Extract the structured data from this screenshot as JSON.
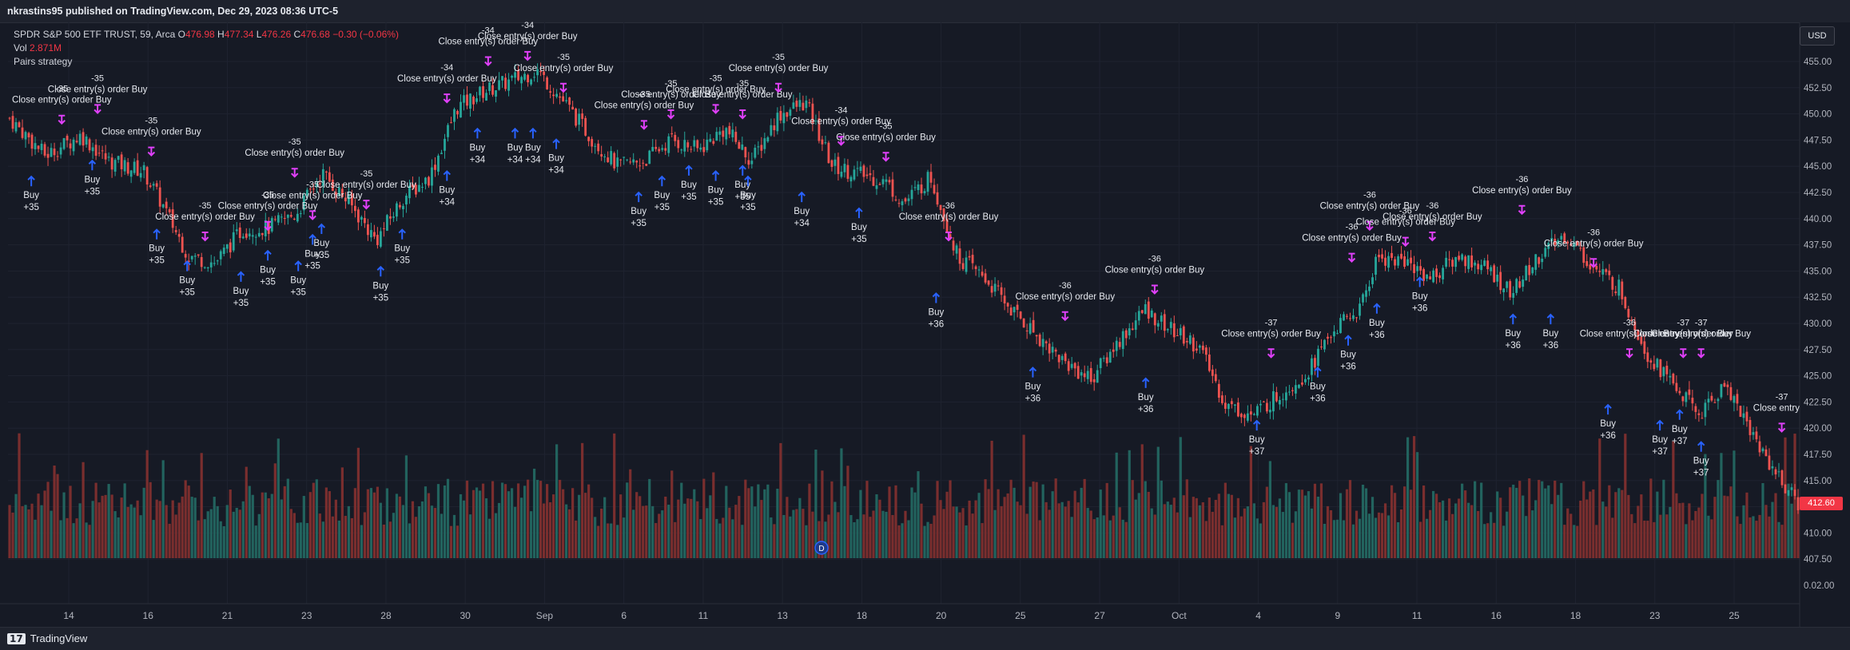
{
  "header": {
    "published": "nkrastins95 published on TradingView.com, Dec 29, 2023 08:36 UTC-5"
  },
  "legend": {
    "symbol": "SPDR S&P 500 ETF TRUST, 59, Arca",
    "o_label": "O",
    "o": "476.98",
    "h_label": "H",
    "h": "477.34",
    "l_label": "L",
    "l": "476.26",
    "c_label": "C",
    "c": "476.68",
    "change": "−0.30 (−0.06%)",
    "vol_label": "Vol",
    "vol": "2.871M",
    "strategy": "Pairs strategy"
  },
  "currency_button": "USD",
  "last_price_tag": "412.60",
  "footer": {
    "logo_mark": "17",
    "brand": "TradingView"
  },
  "marker": "D",
  "colors": {
    "up": "#26a69a",
    "down": "#ef5350",
    "vol_up": "#22635e",
    "vol_down": "#7a2e2e",
    "close_marker": "#e040fb",
    "buy_marker": "#2962ff"
  },
  "chart_data": {
    "type": "candlestick",
    "price_axis": {
      "ylim": [
        407.5,
        457.5
      ],
      "ticks": [
        "455.00",
        "452.50",
        "450.00",
        "447.50",
        "445.00",
        "442.50",
        "440.00",
        "437.50",
        "435.00",
        "432.50",
        "430.00",
        "427.50",
        "425.00",
        "422.50",
        "420.00",
        "417.50",
        "415.00",
        "412.50",
        "410.00",
        "407.50",
        "0.02.00"
      ]
    },
    "x_ticks": [
      "14",
      "16",
      "21",
      "23",
      "28",
      "30",
      "Sep",
      "6",
      "11",
      "13",
      "18",
      "20",
      "25",
      "27",
      "Oct",
      "4",
      "9",
      "11",
      "16",
      "18",
      "23",
      "25"
    ],
    "close_path": [
      [
        0,
        449
      ],
      [
        0.02,
        445.5
      ],
      [
        0.04,
        447.4
      ],
      [
        0.055,
        445
      ],
      [
        0.075,
        444
      ],
      [
        0.085,
        441
      ],
      [
        0.1,
        436
      ],
      [
        0.115,
        435.4
      ],
      [
        0.13,
        438.5
      ],
      [
        0.145,
        438.7
      ],
      [
        0.16,
        440
      ],
      [
        0.175,
        443.8
      ],
      [
        0.19,
        441
      ],
      [
        0.205,
        437.5
      ],
      [
        0.22,
        441.5
      ],
      [
        0.235,
        443.5
      ],
      [
        0.25,
        450
      ],
      [
        0.265,
        451.5
      ],
      [
        0.28,
        452.5
      ],
      [
        0.295,
        453.5
      ],
      [
        0.31,
        450.5
      ],
      [
        0.325,
        447.2
      ],
      [
        0.34,
        444.5
      ],
      [
        0.355,
        445
      ],
      [
        0.37,
        447
      ],
      [
        0.385,
        446
      ],
      [
        0.4,
        448
      ],
      [
        0.415,
        445
      ],
      [
        0.43,
        449.3
      ],
      [
        0.445,
        450.5
      ],
      [
        0.46,
        444.5
      ],
      [
        0.475,
        443.8
      ],
      [
        0.49,
        443
      ],
      [
        0.5,
        441
      ],
      [
        0.515,
        443.5
      ],
      [
        0.53,
        436
      ],
      [
        0.545,
        434
      ],
      [
        0.56,
        431
      ],
      [
        0.575,
        428.5
      ],
      [
        0.59,
        426
      ],
      [
        0.605,
        424.5
      ],
      [
        0.62,
        428
      ],
      [
        0.635,
        431
      ],
      [
        0.65,
        429
      ],
      [
        0.665,
        427.5
      ],
      [
        0.68,
        422
      ],
      [
        0.695,
        421
      ],
      [
        0.71,
        423
      ],
      [
        0.725,
        425
      ],
      [
        0.74,
        429
      ],
      [
        0.755,
        431
      ],
      [
        0.765,
        436
      ],
      [
        0.78,
        435.5
      ],
      [
        0.795,
        434
      ],
      [
        0.81,
        436
      ],
      [
        0.825,
        435
      ],
      [
        0.84,
        432.5
      ],
      [
        0.855,
        436
      ],
      [
        0.87,
        438
      ],
      [
        0.885,
        435
      ],
      [
        0.9,
        433
      ],
      [
        0.915,
        427
      ],
      [
        0.93,
        424
      ],
      [
        0.945,
        421
      ],
      [
        0.96,
        424
      ],
      [
        0.975,
        419
      ],
      [
        0.99,
        415
      ],
      [
        1,
        412.6
      ]
    ],
    "orders_close": [
      {
        "bar": 0.03,
        "price": 448.5,
        "text": "Close entry(s) order Buy",
        "qty": "-35"
      },
      {
        "bar": 0.05,
        "price": 449.5,
        "text": "Close entry(s) order Buy",
        "qty": "-35"
      },
      {
        "bar": 0.08,
        "price": 445.5,
        "text": "Close entry(s) order Buy",
        "qty": "-35"
      },
      {
        "bar": 0.11,
        "price": 437.5,
        "text": "Close entry(s) order Buy",
        "qty": "-35"
      },
      {
        "bar": 0.145,
        "price": 438.5,
        "text": "Close entry(s) order Buy",
        "qty": "-35"
      },
      {
        "bar": 0.16,
        "price": 443.5,
        "text": "Close entry(s) order Buy",
        "qty": "-35"
      },
      {
        "bar": 0.17,
        "price": 439.5,
        "text": "Close entry(s) order Buy",
        "qty": "-35"
      },
      {
        "bar": 0.2,
        "price": 440.5,
        "text": "Close entry(s) order Buy",
        "qty": "-35"
      },
      {
        "bar": 0.245,
        "price": 450.5,
        "text": "Close entry(s) order Buy",
        "qty": "-34"
      },
      {
        "bar": 0.268,
        "price": 454,
        "text": "Close entry(s) order Buy",
        "qty": "-34"
      },
      {
        "bar": 0.29,
        "price": 454.5,
        "text": "Close entry(s) order Buy",
        "qty": "-34"
      },
      {
        "bar": 0.31,
        "price": 451.5,
        "text": "Close entry(s) order Buy",
        "qty": "-35"
      },
      {
        "bar": 0.355,
        "price": 448,
        "text": "Close entry(s) order Buy",
        "qty": "-35"
      },
      {
        "bar": 0.37,
        "price": 449,
        "text": "Close entry(s) order Buy",
        "qty": "-35"
      },
      {
        "bar": 0.395,
        "price": 449.5,
        "text": "Close entry(s) order Buy",
        "qty": "-35"
      },
      {
        "bar": 0.41,
        "price": 449,
        "text": "Close entry(s) order Buy",
        "qty": "-35"
      },
      {
        "bar": 0.43,
        "price": 451.5,
        "text": "Close entry(s) order Buy",
        "qty": "-35"
      },
      {
        "bar": 0.465,
        "price": 446.5,
        "text": "Close entry(s) order Buy",
        "qty": "-34"
      },
      {
        "bar": 0.49,
        "price": 445,
        "text": "Close entry(s) order Buy",
        "qty": "-35"
      },
      {
        "bar": 0.525,
        "price": 437.5,
        "text": "Close entry(s) order Buy",
        "qty": "-36"
      },
      {
        "bar": 0.59,
        "price": 430,
        "text": "Close entry(s) order Buy",
        "qty": "-36"
      },
      {
        "bar": 0.64,
        "price": 432.5,
        "text": "Close entry(s) order Buy",
        "qty": "-36"
      },
      {
        "bar": 0.705,
        "price": 426.5,
        "text": "Close entry(s) order Buy",
        "qty": "-37"
      },
      {
        "bar": 0.75,
        "price": 435.5,
        "text": "Close entry(s) order Buy",
        "qty": "-36"
      },
      {
        "bar": 0.76,
        "price": 438.5,
        "text": "Close entry(s) order Buy",
        "qty": "-36"
      },
      {
        "bar": 0.78,
        "price": 437,
        "text": "Close entry(s) order Buy",
        "qty": "-36"
      },
      {
        "bar": 0.795,
        "price": 437.5,
        "text": "Close entry(s) order Buy",
        "qty": "-36"
      },
      {
        "bar": 0.845,
        "price": 440,
        "text": "Close entry(s) order Buy",
        "qty": "-36"
      },
      {
        "bar": 0.885,
        "price": 435,
        "text": "Close entry(s) order Buy",
        "qty": "-36"
      },
      {
        "bar": 0.905,
        "price": 426.5,
        "text": "Close entry(s) order Buy",
        "qty": "-36"
      },
      {
        "bar": 0.935,
        "price": 426.5,
        "text": "Close entry(s) order Buy",
        "qty": "-37"
      },
      {
        "bar": 0.945,
        "price": 426.5,
        "text": "Close entry(s) order Buy",
        "qty": "-37"
      },
      {
        "bar": 0.99,
        "price": 419.5,
        "text": "Close entry(s)",
        "qty": "-37"
      }
    ],
    "orders_buy": [
      {
        "bar": 0.013,
        "price": 443.5,
        "label": "Buy",
        "qty": "+35"
      },
      {
        "bar": 0.047,
        "price": 445,
        "label": "Buy",
        "qty": "+35"
      },
      {
        "bar": 0.083,
        "price": 438.5,
        "label": "Buy",
        "qty": "+35"
      },
      {
        "bar": 0.1,
        "price": 435.5,
        "label": "Buy",
        "qty": "+35"
      },
      {
        "bar": 0.13,
        "price": 434.5,
        "label": "Buy",
        "qty": "+35"
      },
      {
        "bar": 0.145,
        "price": 436.5,
        "label": "Buy",
        "qty": "+35"
      },
      {
        "bar": 0.162,
        "price": 435.5,
        "label": "Buy",
        "qty": "+35"
      },
      {
        "bar": 0.17,
        "price": 438,
        "label": "Buy",
        "qty": "+35"
      },
      {
        "bar": 0.175,
        "price": 439,
        "label": "Buy",
        "qty": "+35"
      },
      {
        "bar": 0.208,
        "price": 435,
        "label": "Buy",
        "qty": "+35"
      },
      {
        "bar": 0.22,
        "price": 438.5,
        "label": "Buy",
        "qty": "+35"
      },
      {
        "bar": 0.245,
        "price": 444,
        "label": "Buy",
        "qty": "+34"
      },
      {
        "bar": 0.262,
        "price": 448,
        "label": "Buy",
        "qty": "+34"
      },
      {
        "bar": 0.283,
        "price": 448,
        "label": "Buy",
        "qty": "+34"
      },
      {
        "bar": 0.293,
        "price": 448,
        "label": "Buy",
        "qty": "+34"
      },
      {
        "bar": 0.306,
        "price": 447,
        "label": "Buy",
        "qty": "+34"
      },
      {
        "bar": 0.352,
        "price": 442,
        "label": "Buy",
        "qty": "+35"
      },
      {
        "bar": 0.365,
        "price": 443.5,
        "label": "Buy",
        "qty": "+35"
      },
      {
        "bar": 0.38,
        "price": 444.5,
        "label": "Buy",
        "qty": "+35"
      },
      {
        "bar": 0.395,
        "price": 444,
        "label": "Buy",
        "qty": "+35"
      },
      {
        "bar": 0.41,
        "price": 444.5,
        "label": "Buy",
        "qty": "+35"
      },
      {
        "bar": 0.413,
        "price": 443.5,
        "label": "Buy",
        "qty": "+35"
      },
      {
        "bar": 0.443,
        "price": 442,
        "label": "Buy",
        "qty": "+34"
      },
      {
        "bar": 0.475,
        "price": 440.5,
        "label": "Buy",
        "qty": "+35"
      },
      {
        "bar": 0.518,
        "price": 432.5,
        "label": "Buy",
        "qty": "+36"
      },
      {
        "bar": 0.572,
        "price": 425.5,
        "label": "Buy",
        "qty": "+36"
      },
      {
        "bar": 0.635,
        "price": 424.5,
        "label": "Buy",
        "qty": "+36"
      },
      {
        "bar": 0.697,
        "price": 420.5,
        "label": "Buy",
        "qty": "+37"
      },
      {
        "bar": 0.731,
        "price": 425.5,
        "label": "Buy",
        "qty": "+36"
      },
      {
        "bar": 0.748,
        "price": 428.5,
        "label": "Buy",
        "qty": "+36"
      },
      {
        "bar": 0.764,
        "price": 431.5,
        "label": "Buy",
        "qty": "+36"
      },
      {
        "bar": 0.788,
        "price": 434,
        "label": "Buy",
        "qty": "+36"
      },
      {
        "bar": 0.84,
        "price": 430.5,
        "label": "Buy",
        "qty": "+36"
      },
      {
        "bar": 0.861,
        "price": 430.5,
        "label": "Buy",
        "qty": "+36"
      },
      {
        "bar": 0.893,
        "price": 422,
        "label": "Buy",
        "qty": "+36"
      },
      {
        "bar": 0.922,
        "price": 420.5,
        "label": "Buy",
        "qty": "+37"
      },
      {
        "bar": 0.933,
        "price": 421.5,
        "label": "Buy",
        "qty": "+37"
      },
      {
        "bar": 0.945,
        "price": 418.5,
        "label": "Buy",
        "qty": "+37"
      }
    ]
  }
}
